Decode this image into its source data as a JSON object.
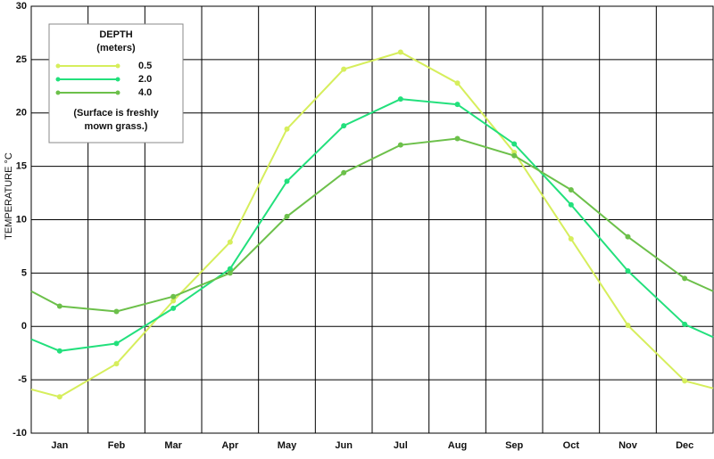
{
  "chart_data": {
    "type": "line",
    "y_label": "TEMPERATURE  °C",
    "x": [
      0.5,
      1,
      2,
      3,
      4,
      5,
      6,
      7,
      8,
      9,
      10,
      11,
      12,
      12.5
    ],
    "xlim": [
      0.5,
      12.5
    ],
    "xticks": [
      {
        "value": 1,
        "label": "Jan"
      },
      {
        "value": 2,
        "label": "Feb"
      },
      {
        "value": 3,
        "label": "Mar"
      },
      {
        "value": 4,
        "label": "Apr"
      },
      {
        "value": 5,
        "label": "May"
      },
      {
        "value": 6,
        "label": "Jun"
      },
      {
        "value": 7,
        "label": "Jul"
      },
      {
        "value": 8,
        "label": "Aug"
      },
      {
        "value": 9,
        "label": "Sep"
      },
      {
        "value": 10,
        "label": "Oct"
      },
      {
        "value": 11,
        "label": "Nov"
      },
      {
        "value": 12,
        "label": "Dec"
      }
    ],
    "ylim": [
      -10,
      30
    ],
    "yticks": [
      -10,
      -5,
      0,
      5,
      10,
      15,
      20,
      25,
      30
    ],
    "grid": true,
    "legend": {
      "title": "DEPTH",
      "subtitle": "(meters)",
      "note": [
        "(Surface is freshly",
        "mown grass.)"
      ],
      "position": "upper-left"
    },
    "series": [
      {
        "name": "0.5",
        "color": "#d6ee5c",
        "values": [
          -5.9,
          -6.6,
          -3.5,
          2.4,
          7.9,
          18.5,
          24.1,
          25.7,
          22.8,
          16.3,
          8.2,
          0.1,
          -5.1,
          -5.8
        ]
      },
      {
        "name": "2.0",
        "color": "#22e07c",
        "values": [
          -1.2,
          -2.3,
          -1.6,
          1.7,
          5.4,
          13.6,
          18.8,
          21.3,
          20.8,
          17.1,
          11.4,
          5.2,
          0.2,
          -1.0
        ]
      },
      {
        "name": "4.0",
        "color": "#6cc04a",
        "values": [
          3.3,
          1.9,
          1.4,
          2.8,
          5.0,
          10.3,
          14.4,
          17.0,
          17.6,
          16.0,
          12.8,
          8.4,
          4.5,
          3.3
        ]
      }
    ]
  }
}
